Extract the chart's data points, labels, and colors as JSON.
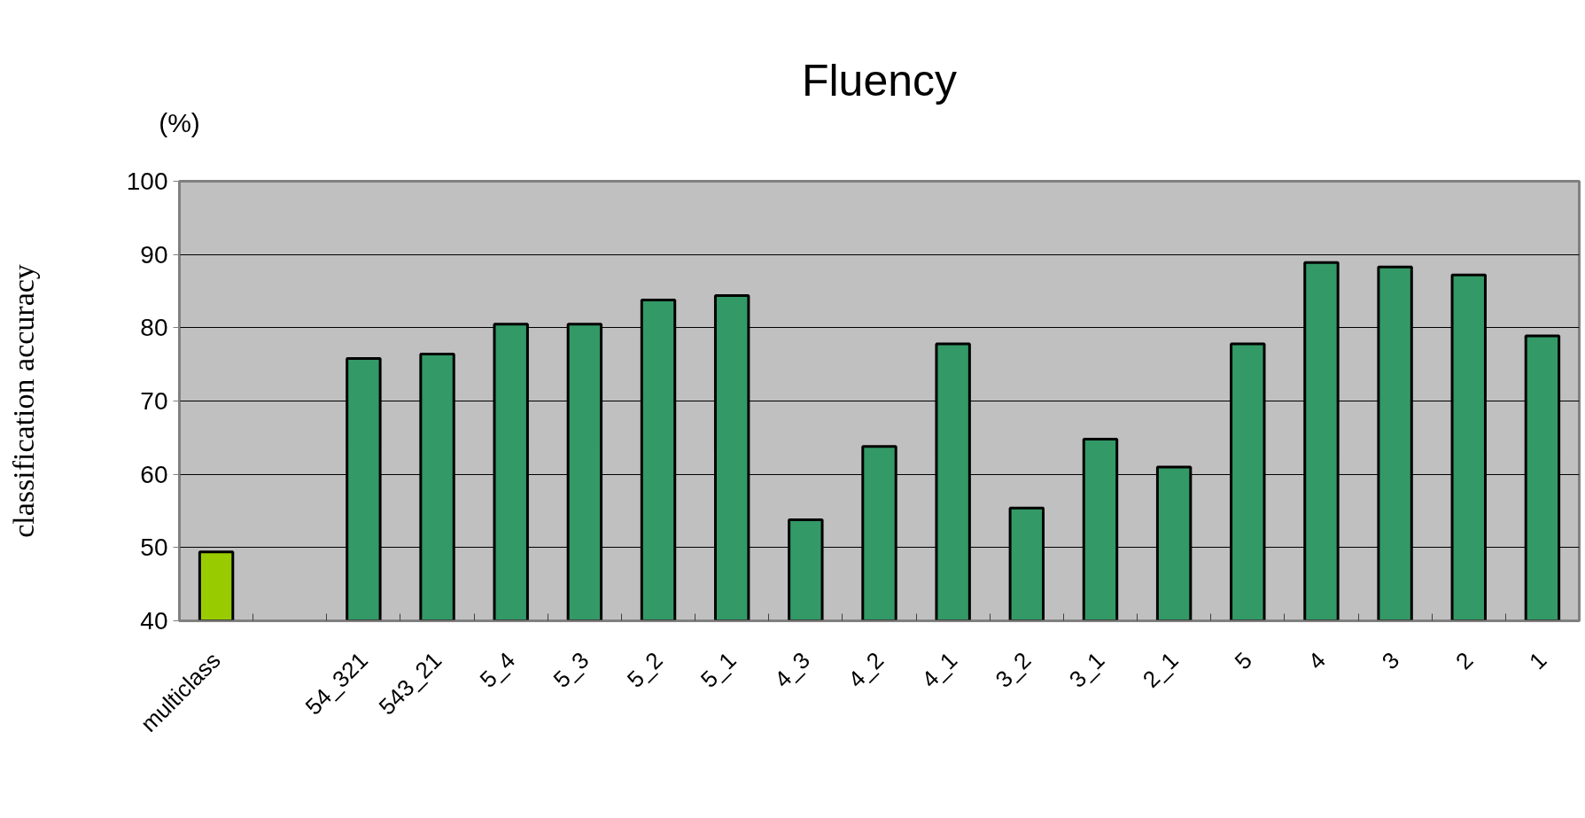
{
  "chart_data": {
    "type": "bar",
    "title": "Fluency",
    "ylabel": "classification accuracy",
    "annotations": [
      "(%)"
    ],
    "categories": [
      "multiclass",
      null,
      "54_321",
      "543_21",
      "5_4",
      "5_3",
      "5_2",
      "5_1",
      "4_3",
      "4_2",
      "4_1",
      "3_2",
      "3_1",
      "2_1",
      "5",
      "4",
      "3",
      "2",
      "1"
    ],
    "values": [
      49.4,
      null,
      75.8,
      76.4,
      80.5,
      80.5,
      83.8,
      84.4,
      53.8,
      63.8,
      77.8,
      55.4,
      64.8,
      61.0,
      77.8,
      88.9,
      88.3,
      87.2,
      78.9
    ],
    "colors": [
      "#99cc00",
      null,
      "#339966",
      "#339966",
      "#339966",
      "#339966",
      "#339966",
      "#339966",
      "#339966",
      "#339966",
      "#339966",
      "#339966",
      "#339966",
      "#339966",
      "#339966",
      "#339966",
      "#339966",
      "#339966",
      "#339966"
    ],
    "ylim": [
      40,
      100
    ],
    "yticks": [
      40,
      50,
      60,
      70,
      80,
      90,
      100
    ],
    "grid": "y"
  }
}
